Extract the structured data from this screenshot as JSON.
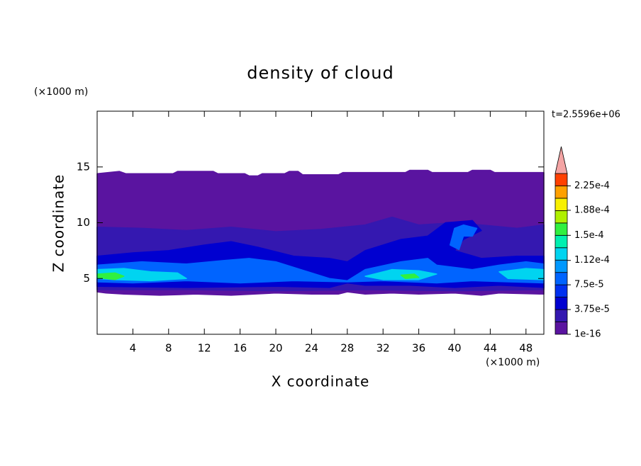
{
  "chart_data": {
    "type": "contour",
    "title": "density of cloud",
    "x_label": "X coordinate",
    "y_label": "Z coordinate",
    "x_unit": "(×1000 m)",
    "y_unit": "(×1000 m)",
    "time_label": "t=2.5596e+06",
    "xlim": [
      0,
      50
    ],
    "ylim": [
      0,
      20
    ],
    "xticks": [
      4,
      8,
      12,
      16,
      20,
      24,
      28,
      32,
      36,
      40,
      44,
      48
    ],
    "yticks": [
      5,
      10,
      15
    ],
    "colorbar": {
      "levels": [
        1e-16,
        1.875e-05,
        3.75e-05,
        5.625e-05,
        7.5e-05,
        9.375e-05,
        0.0001125,
        0.00013125,
        0.00015,
        0.00016875,
        0.0001875,
        0.00020625,
        0.000225,
        0.00024375
      ],
      "colors": [
        "#5a14a0",
        "#3418b0",
        "#0000d0",
        "#0030f0",
        "#0064ff",
        "#0098ff",
        "#00d4f0",
        "#00f0b0",
        "#30f040",
        "#b0f000",
        "#f8f000",
        "#ffa000",
        "#ff4000"
      ],
      "extend_color": "#f4a4a4",
      "ticks": [
        {
          "value": 1e-16,
          "label": "1e-16"
        },
        {
          "value": 3.75e-05,
          "label": "3.75e-5"
        },
        {
          "value": 7.5e-05,
          "label": "7.5e-5"
        },
        {
          "value": 0.000112,
          "label": "1.12e-4"
        },
        {
          "value": 0.00015,
          "label": "1.5e-4"
        },
        {
          "value": 0.000188,
          "label": "1.88e-4"
        },
        {
          "value": 0.000225,
          "label": "2.25e-4"
        }
      ]
    },
    "regions": [
      {
        "value": 1e-16,
        "x": [
          0,
          2.5,
          3.2,
          8.5,
          9,
          13,
          13.5,
          16.5,
          17,
          18,
          18.5,
          21,
          21.5,
          22.5,
          23,
          27,
          27.5,
          34.5,
          35,
          37,
          37.5,
          41.5,
          42,
          44,
          44.5,
          50,
          50,
          45,
          43,
          40,
          36,
          33,
          30,
          28,
          27,
          24,
          20,
          15,
          11,
          7,
          3,
          1,
          0
        ],
        "z": [
          14.4,
          14.6,
          14.4,
          14.4,
          14.6,
          14.6,
          14.4,
          14.4,
          14.2,
          14.2,
          14.4,
          14.4,
          14.6,
          14.6,
          14.3,
          14.3,
          14.5,
          14.5,
          14.7,
          14.7,
          14.5,
          14.5,
          14.7,
          14.7,
          14.5,
          14.5,
          3.6,
          3.7,
          3.5,
          3.7,
          3.6,
          3.7,
          3.6,
          3.8,
          3.6,
          3.6,
          3.7,
          3.5,
          3.6,
          3.5,
          3.6,
          3.7,
          3.8
        ]
      },
      {
        "value": 1.875e-05,
        "x": [
          0,
          5,
          10,
          15,
          20,
          25,
          30,
          33,
          36,
          40,
          43,
          47,
          50,
          50,
          40,
          30,
          20,
          10,
          0
        ],
        "z": [
          9.6,
          9.5,
          9.3,
          9.6,
          9.2,
          9.4,
          9.8,
          10.5,
          9.8,
          10,
          9.8,
          9.5,
          9.8,
          4,
          3.9,
          4,
          3.9,
          4,
          4
        ]
      },
      {
        "value": 3.75e-05,
        "x": [
          0,
          4,
          8,
          12,
          15,
          18,
          22,
          26,
          28,
          30,
          34,
          37,
          39,
          42,
          43,
          41,
          40,
          43,
          47,
          50,
          50,
          45,
          40,
          35,
          30,
          28,
          26,
          20,
          10,
          0
        ],
        "z": [
          7,
          7.3,
          7.5,
          8,
          8.3,
          7.8,
          7,
          6.8,
          6.5,
          7.5,
          8.5,
          8.8,
          10,
          10.2,
          9.3,
          8.5,
          7.5,
          6.8,
          7,
          7,
          4.2,
          4.4,
          4.2,
          4.4,
          4.4,
          4.6,
          4.2,
          4.3,
          4.2,
          4.3
        ]
      },
      {
        "value": 7.5e-05,
        "x": [
          0,
          5,
          10,
          14,
          17,
          20,
          24,
          26,
          28,
          30,
          34,
          37,
          38,
          42,
          45,
          48,
          50,
          50,
          46,
          42,
          38,
          32,
          28,
          22,
          16,
          10,
          4,
          0
        ],
        "z": [
          6.2,
          6.5,
          6.3,
          6.6,
          6.8,
          6.5,
          5.5,
          5,
          4.8,
          5.8,
          6.5,
          6.8,
          6.2,
          5.8,
          6.2,
          6.5,
          6.3,
          4.6,
          4.7,
          4.8,
          4.6,
          4.8,
          4.7,
          4.8,
          4.6,
          4.8,
          4.6,
          4.7
        ]
      },
      {
        "value": 7.5e-05,
        "x": [
          39.5,
          40,
          41,
          42.5,
          42,
          41,
          40.5
        ],
        "z": [
          8,
          9.5,
          9.8,
          9.5,
          8.8,
          8.8,
          7.6
        ]
      },
      {
        "value": 0.0001125,
        "x": [
          0,
          3,
          6,
          9,
          10,
          6,
          2,
          0
        ],
        "z": [
          5.8,
          5.9,
          5.6,
          5.5,
          5,
          4.8,
          4.9,
          5
        ]
      },
      {
        "value": 0.0001125,
        "x": [
          30,
          33,
          36,
          38,
          36,
          32
        ],
        "z": [
          5.2,
          5.8,
          5.7,
          5.4,
          4.9,
          4.9
        ]
      },
      {
        "value": 0.0001125,
        "x": [
          45,
          48,
          50,
          50,
          46
        ],
        "z": [
          5.6,
          5.9,
          5.8,
          4.9,
          5
        ]
      },
      {
        "value": 0.00015,
        "x": [
          0,
          2,
          3,
          2,
          0
        ],
        "z": [
          5.4,
          5.5,
          5.2,
          4.9,
          5.1
        ]
      },
      {
        "value": 0.00015,
        "x": [
          34,
          35.5,
          36,
          34.5
        ],
        "z": [
          5.3,
          5.4,
          5.1,
          5
        ]
      }
    ]
  }
}
